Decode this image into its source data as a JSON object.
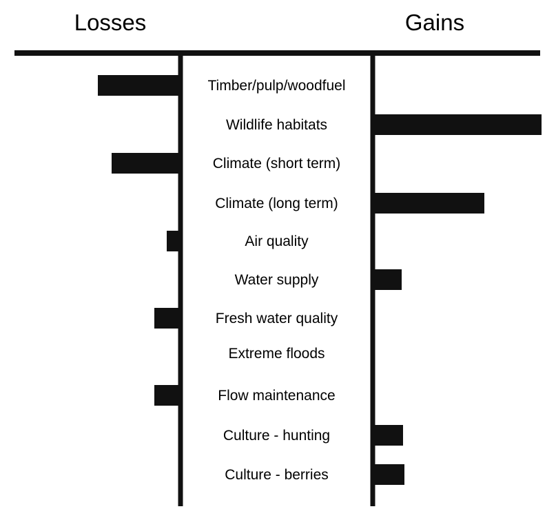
{
  "headings": {
    "left": "Losses",
    "right": "Gains"
  },
  "colors": {
    "bar": "#111111",
    "axis": "#111111",
    "text": "#000000",
    "background": "#ffffff"
  },
  "chart_data": {
    "type": "bar",
    "orientation": "horizontal-diverging",
    "categories": [
      "Timber/pulp/woodfuel",
      "Wildlife habitats",
      "Climate (short term)",
      "Climate (long term)",
      "Air quality",
      "Water supply",
      "Fresh water quality",
      "Extreme floods",
      "Flow maintenance",
      "Culture - hunting",
      "Culture - berries"
    ],
    "series": [
      {
        "name": "Losses",
        "values": [
          120,
          0,
          100,
          0,
          20,
          0,
          38,
          0,
          38,
          0,
          0
        ]
      },
      {
        "name": "Gains",
        "values": [
          0,
          245,
          0,
          162,
          0,
          42,
          0,
          0,
          0,
          44,
          46
        ]
      }
    ],
    "grid": false,
    "legend": "none"
  }
}
